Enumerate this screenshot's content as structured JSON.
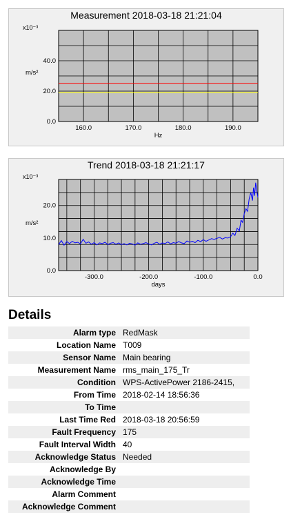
{
  "chart_data": [
    {
      "type": "line",
      "title": "Measurement 2018-03-18 21:21:04",
      "xlabel": "Hz",
      "ylabel": "m/s²",
      "y_exponent_label": "x10⁻³",
      "xlim": [
        155,
        195
      ],
      "ylim": [
        0,
        60
      ],
      "xticks": [
        "160.0",
        "170.0",
        "180.0",
        "190.0"
      ],
      "xtick_values": [
        160,
        170,
        180,
        190
      ],
      "yticks": [
        "0.0",
        "20.0",
        "40.0"
      ],
      "ytick_values": [
        0,
        20,
        40
      ],
      "grid": true,
      "background_color": "#c0c0c0",
      "series": [
        {
          "values": [
            25.2,
            25.2
          ],
          "x": [
            155,
            195
          ],
          "color": "#ff0000"
        },
        {
          "values": [
            19.0,
            19.0
          ],
          "x": [
            155,
            195
          ],
          "color": "#ffff00"
        }
      ]
    },
    {
      "type": "line",
      "title": "Trend 2018-03-18 21:21:17",
      "xlabel": "days",
      "ylabel": "m/s²",
      "y_exponent_label": "x10⁻³",
      "xlim": [
        -365,
        0
      ],
      "ylim": [
        0,
        28
      ],
      "xticks": [
        "-300.0",
        "-200.0",
        "-100.0",
        "0.0"
      ],
      "xtick_values": [
        -300,
        -200,
        -100,
        0
      ],
      "yticks": [
        "0.0",
        "10.0",
        "20.0"
      ],
      "ytick_values": [
        0,
        10,
        20
      ],
      "grid": true,
      "background_color": "#c0c0c0",
      "series": [
        {
          "color": "#0000ff",
          "x": [
            -365,
            -360,
            -355,
            -350,
            -345,
            -340,
            -335,
            -330,
            -325,
            -320,
            -315,
            -310,
            -305,
            -300,
            -295,
            -290,
            -285,
            -280,
            -275,
            -270,
            -265,
            -260,
            -255,
            -250,
            -245,
            -240,
            -235,
            -230,
            -225,
            -220,
            -215,
            -210,
            -205,
            -200,
            -195,
            -190,
            -185,
            -180,
            -175,
            -170,
            -165,
            -160,
            -155,
            -150,
            -145,
            -140,
            -135,
            -130,
            -125,
            -120,
            -115,
            -110,
            -105,
            -100,
            -95,
            -90,
            -85,
            -80,
            -75,
            -70,
            -65,
            -60,
            -55,
            -50,
            -46,
            -42,
            -38,
            -34,
            -31,
            -28,
            -25,
            -22,
            -19,
            -16,
            -13,
            -10,
            -8,
            -6,
            -4,
            -2,
            0
          ],
          "values": [
            8.0,
            9.2,
            7.8,
            8.9,
            8.3,
            9.0,
            8.5,
            8.7,
            8.2,
            9.6,
            8.4,
            8.8,
            8.1,
            8.6,
            7.9,
            8.5,
            8.3,
            8.7,
            8.0,
            8.4,
            8.6,
            8.1,
            8.5,
            8.0,
            8.3,
            7.9,
            8.4,
            8.2,
            7.8,
            8.5,
            8.1,
            8.3,
            8.6,
            8.2,
            7.9,
            8.4,
            8.7,
            8.1,
            8.5,
            8.3,
            8.8,
            8.2,
            8.6,
            8.4,
            8.9,
            8.5,
            8.3,
            9.1,
            8.7,
            9.0,
            8.6,
            9.3,
            8.9,
            9.5,
            9.0,
            9.4,
            9.8,
            9.6,
            9.9,
            10.2,
            9.7,
            10.1,
            10.0,
            10.4,
            11.5,
            10.8,
            13.0,
            12.2,
            15.5,
            14.8,
            17.5,
            19.0,
            18.2,
            22.0,
            24.0,
            21.5,
            25.5,
            23.0,
            27.0,
            24.5,
            22.5
          ]
        }
      ]
    }
  ],
  "details": {
    "heading": "Details",
    "rows": [
      {
        "label": "Alarm type",
        "value": "RedMask"
      },
      {
        "label": "Location Name",
        "value": "T009"
      },
      {
        "label": "Sensor Name",
        "value": "Main bearing"
      },
      {
        "label": "Measurement Name",
        "value": "rms_main_175_Tr"
      },
      {
        "label": "Condition",
        "value": "WPS-ActivePower 2186-2415,"
      },
      {
        "label": "From Time",
        "value": "2018-02-14 18:56:36"
      },
      {
        "label": "To Time",
        "value": ""
      },
      {
        "label": "Last Time Red",
        "value": "2018-03-18 20:56:59"
      },
      {
        "label": "Fault Frequency",
        "value": "175"
      },
      {
        "label": "Fault Interval Width",
        "value": "40"
      },
      {
        "label": "Acknowledge Status",
        "value": "Needed"
      },
      {
        "label": "Acknowledge By",
        "value": ""
      },
      {
        "label": "Acknowledge Time",
        "value": ""
      },
      {
        "label": "Alarm Comment",
        "value": ""
      },
      {
        "label": "Acknowledge Comment",
        "value": ""
      }
    ]
  }
}
